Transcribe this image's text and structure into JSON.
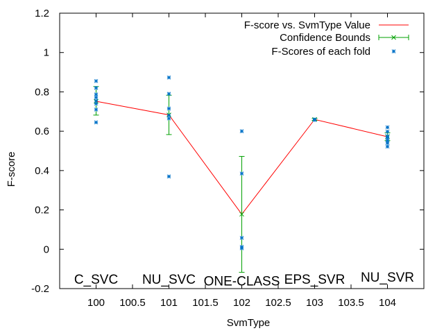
{
  "chart_data": {
    "type": "line",
    "title": "",
    "xlabel": "SvmType",
    "ylabel": "F-score",
    "xlim": [
      99.5,
      104.5
    ],
    "ylim": [
      -0.2,
      1.2
    ],
    "x_ticks": [
      {
        "value": 100,
        "label": "100"
      },
      {
        "value": 100.5,
        "label": "100.5"
      },
      {
        "value": 101,
        "label": "101"
      },
      {
        "value": 101.5,
        "label": "101.5"
      },
      {
        "value": 102,
        "label": "102"
      },
      {
        "value": 102.5,
        "label": "102.5"
      },
      {
        "value": 103,
        "label": "103"
      },
      {
        "value": 103.5,
        "label": "103.5"
      },
      {
        "value": 104,
        "label": "104"
      }
    ],
    "y_ticks": [
      {
        "value": -0.2,
        "label": "-0.2"
      },
      {
        "value": 0,
        "label": "0"
      },
      {
        "value": 0.2,
        "label": "0.2"
      },
      {
        "value": 0.4,
        "label": "0.4"
      },
      {
        "value": 0.6,
        "label": "0.6"
      },
      {
        "value": 0.8,
        "label": "0.8"
      },
      {
        "value": 1,
        "label": "1"
      },
      {
        "value": 1.2,
        "label": "1.2"
      }
    ],
    "grid": false,
    "legend_position": "top-right",
    "annotations": [
      {
        "x": 100,
        "y": -0.15,
        "text": "C_SVC"
      },
      {
        "x": 101,
        "y": -0.15,
        "text": "NU_SVC"
      },
      {
        "x": 102,
        "y": -0.16,
        "text": "ONE-CLASS"
      },
      {
        "x": 103,
        "y": -0.15,
        "text": "EPS_SVR"
      },
      {
        "x": 104,
        "y": -0.14,
        "text": "NU_SVR"
      }
    ],
    "series": [
      {
        "name": "F-score vs. SvmType Value",
        "kind": "line",
        "color": "#ff0000",
        "x": [
          100,
          101,
          102,
          103,
          104
        ],
        "y": [
          0.752,
          0.683,
          0.178,
          0.66,
          0.572
        ]
      },
      {
        "name": "Confidence Bounds",
        "kind": "errorbar",
        "color": "#00a000",
        "x": [
          100,
          101,
          102,
          103,
          104
        ],
        "y": [
          0.752,
          0.683,
          0.178,
          0.66,
          0.572
        ],
        "low": [
          0.682,
          0.583,
          -0.117,
          0.655,
          0.552
        ],
        "high": [
          0.827,
          0.783,
          0.472,
          0.665,
          0.592
        ]
      },
      {
        "name": "F-Scores of each fold",
        "kind": "scatter",
        "color": "#0072c8",
        "points": [
          [
            100,
            0.855
          ],
          [
            100,
            0.82
          ],
          [
            100,
            0.787
          ],
          [
            100,
            0.772
          ],
          [
            100,
            0.755
          ],
          [
            100,
            0.74
          ],
          [
            100,
            0.71
          ],
          [
            100,
            0.645
          ],
          [
            101,
            0.873
          ],
          [
            101,
            0.79
          ],
          [
            101,
            0.715
          ],
          [
            101,
            0.68
          ],
          [
            101,
            0.665
          ],
          [
            101,
            0.37
          ],
          [
            102,
            0.6
          ],
          [
            102,
            0.385
          ],
          [
            102,
            0.058
          ],
          [
            102,
            0.012
          ],
          [
            102,
            0.005
          ],
          [
            103,
            0.66
          ],
          [
            103,
            0.657
          ],
          [
            104,
            0.62
          ],
          [
            104,
            0.598
          ],
          [
            104,
            0.575
          ],
          [
            104,
            0.565
          ],
          [
            104,
            0.552
          ],
          [
            104,
            0.54
          ],
          [
            104,
            0.522
          ]
        ]
      }
    ]
  }
}
